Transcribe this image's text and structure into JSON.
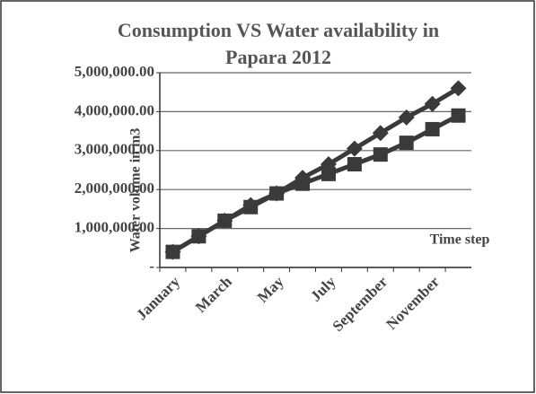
{
  "chart_data": {
    "type": "line",
    "title": "Consumption VS Water availability in Papara 2012",
    "y_label": "Water volume in m3",
    "x_label": "Time step",
    "categories": [
      "January",
      null,
      "March",
      null,
      "May",
      null,
      "July",
      null,
      "September",
      null,
      "November",
      null
    ],
    "series": [
      {
        "color": "#3a3a3a",
        "marker": "diamond",
        "values": [
          400000,
          800000,
          1200000,
          1600000,
          1900000,
          2300000,
          2650000,
          3050000,
          3450000,
          3850000,
          4200000,
          4600000
        ]
      },
      {
        "color": "#3a3a3a",
        "marker": "square",
        "values": [
          400000,
          800000,
          1200000,
          1550000,
          1900000,
          2150000,
          2400000,
          2650000,
          2900000,
          3200000,
          3550000,
          3900000
        ]
      }
    ],
    "ylim": [
      0,
      5000000
    ],
    "yticks": [
      {
        "value": 0,
        "label": "-"
      },
      {
        "value": 1000000,
        "label": "1,000,000.00"
      },
      {
        "value": 2000000,
        "label": "2,000,000.00"
      },
      {
        "value": 3000000,
        "label": "3,000,000.00"
      },
      {
        "value": 4000000,
        "label": "4,000,000.00"
      },
      {
        "value": 5000000,
        "label": "5,000,000.00"
      }
    ],
    "grid": true
  }
}
